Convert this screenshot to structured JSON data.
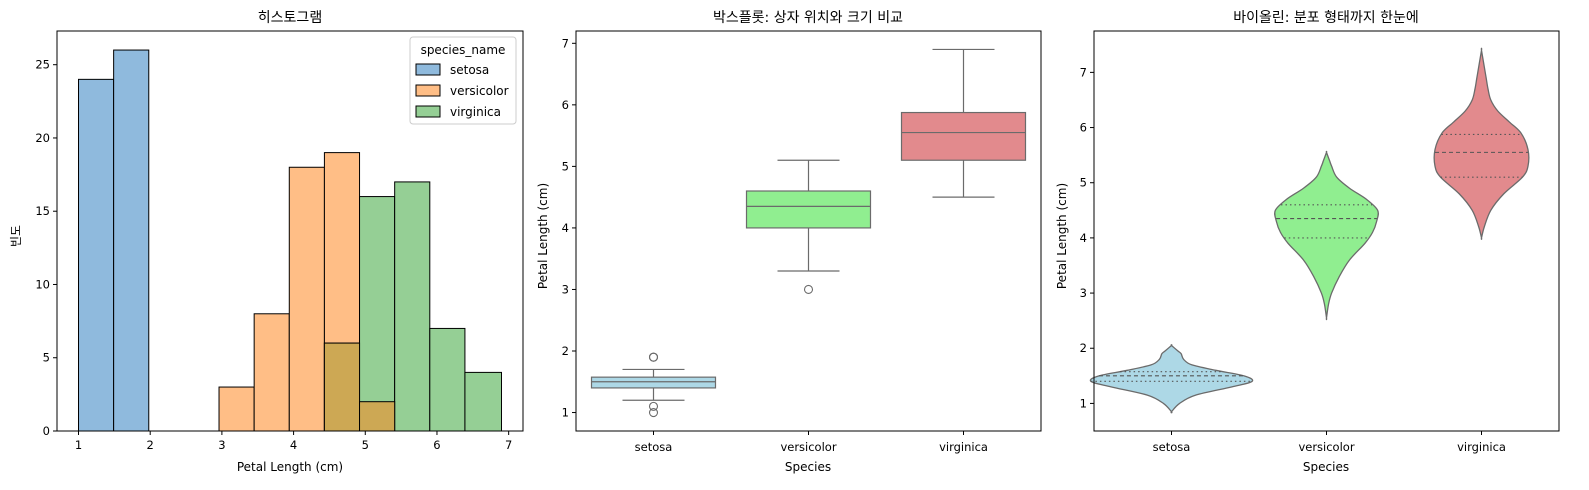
{
  "chart_data": [
    {
      "type": "histogram",
      "title": "히스토그램",
      "xlabel": "Petal Length (cm)",
      "ylabel": "빈도",
      "xlim": [
        0.7,
        7.2
      ],
      "ylim": [
        0,
        27.3
      ],
      "xticks": [
        1,
        2,
        3,
        4,
        5,
        6,
        7
      ],
      "yticks": [
        0,
        5,
        10,
        15,
        20,
        25
      ],
      "bin_edges": [
        1.0,
        1.49,
        1.98,
        2.47,
        2.96,
        3.45,
        3.94,
        4.43,
        4.92,
        5.41,
        5.9,
        6.39,
        6.9
      ],
      "legend": {
        "title": "species_name",
        "position": "top-right",
        "entries": [
          "setosa",
          "versicolor",
          "virginica"
        ]
      },
      "series": [
        {
          "name": "setosa",
          "color": "#8fbadd",
          "counts": [
            24,
            26,
            0,
            0,
            0,
            0,
            0,
            0,
            0,
            0,
            0,
            0
          ]
        },
        {
          "name": "versicolor",
          "color": "#ffbe86",
          "counts": [
            0,
            0,
            0,
            0,
            3,
            8,
            18,
            19,
            2,
            0,
            0,
            0
          ]
        },
        {
          "name": "virginica",
          "color": "#95cf95",
          "counts": [
            0,
            0,
            0,
            0,
            0,
            0,
            0,
            6,
            16,
            17,
            7,
            4
          ]
        }
      ],
      "overlap_color": "#cda854"
    },
    {
      "type": "box",
      "title": "박스플롯: 상자 위치와 크기 비교",
      "xlabel": "Species",
      "ylabel": "Petal Length (cm)",
      "ylim": [
        0.7,
        7.2
      ],
      "yticks": [
        1,
        2,
        3,
        4,
        5,
        6,
        7
      ],
      "categories": [
        "setosa",
        "versicolor",
        "virginica"
      ],
      "colors": [
        "#add8e6",
        "#90ee90",
        "#e28a8d"
      ],
      "boxes": [
        {
          "whisker_low": 1.2,
          "q1": 1.4,
          "median": 1.5,
          "q3": 1.575,
          "whisker_high": 1.7,
          "outliers": [
            1.0,
            1.1,
            1.9,
            1.9
          ]
        },
        {
          "whisker_low": 3.3,
          "q1": 4.0,
          "median": 4.35,
          "q3": 4.6,
          "whisker_high": 5.1,
          "outliers": [
            3.0
          ]
        },
        {
          "whisker_low": 4.5,
          "q1": 5.1,
          "median": 5.55,
          "q3": 5.875,
          "whisker_high": 6.9,
          "outliers": []
        }
      ]
    },
    {
      "type": "violin",
      "title": "바이올린: 분포 형태까지 한눈에",
      "xlabel": "Species",
      "ylabel": "Petal Length (cm)",
      "ylim": [
        0.5,
        7.75
      ],
      "yticks": [
        1,
        2,
        3,
        4,
        5,
        6,
        7
      ],
      "categories": [
        "setosa",
        "versicolor",
        "virginica"
      ],
      "colors": [
        "#add8e6",
        "#90ee90",
        "#e28a8d"
      ],
      "violins": [
        {
          "profile": [
            [
              0.85,
              0.0
            ],
            [
              1.0,
              0.1
            ],
            [
              1.15,
              0.3
            ],
            [
              1.3,
              0.75
            ],
            [
              1.4,
              1.0
            ],
            [
              1.5,
              0.9
            ],
            [
              1.6,
              0.55
            ],
            [
              1.7,
              0.25
            ],
            [
              1.8,
              0.15
            ],
            [
              1.9,
              0.12
            ],
            [
              1.95,
              0.08
            ],
            [
              2.05,
              0.0
            ]
          ],
          "half_width": 0.52,
          "q1": 1.4,
          "median": 1.5,
          "q3": 1.575
        },
        {
          "profile": [
            [
              2.55,
              0.0
            ],
            [
              2.8,
              0.04
            ],
            [
              3.0,
              0.1
            ],
            [
              3.3,
              0.25
            ],
            [
              3.6,
              0.45
            ],
            [
              3.9,
              0.75
            ],
            [
              4.1,
              0.9
            ],
            [
              4.3,
              0.98
            ],
            [
              4.5,
              1.0
            ],
            [
              4.7,
              0.78
            ],
            [
              4.9,
              0.45
            ],
            [
              5.1,
              0.2
            ],
            [
              5.3,
              0.1
            ],
            [
              5.4,
              0.06
            ],
            [
              5.55,
              0.0
            ]
          ],
          "half_width": 0.33,
          "q1": 4.0,
          "median": 4.35,
          "q3": 4.6
        },
        {
          "profile": [
            [
              4.0,
              0.0
            ],
            [
              4.2,
              0.06
            ],
            [
              4.5,
              0.2
            ],
            [
              4.8,
              0.48
            ],
            [
              5.1,
              0.88
            ],
            [
              5.3,
              1.0
            ],
            [
              5.6,
              1.0
            ],
            [
              5.9,
              0.85
            ],
            [
              6.1,
              0.6
            ],
            [
              6.3,
              0.35
            ],
            [
              6.5,
              0.2
            ],
            [
              6.7,
              0.14
            ],
            [
              6.9,
              0.1
            ],
            [
              7.1,
              0.06
            ],
            [
              7.4,
              0.0
            ]
          ],
          "half_width": 0.3,
          "q1": 5.1,
          "median": 5.55,
          "q3": 5.875
        }
      ]
    }
  ]
}
